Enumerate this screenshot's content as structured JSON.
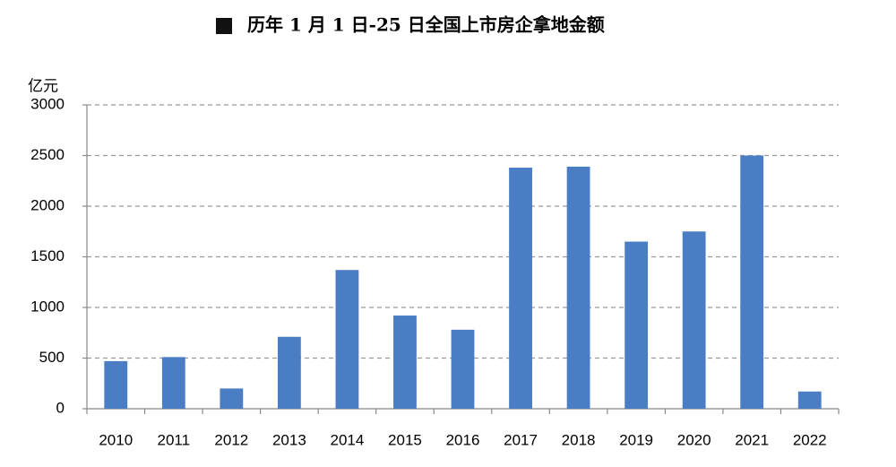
{
  "chart_data": {
    "type": "bar",
    "title": "历年 1 月 1 日-25 日全国上市房企拿地金额",
    "y_label": "亿元",
    "categories": [
      "2010",
      "2011",
      "2012",
      "2013",
      "2014",
      "2015",
      "2016",
      "2017",
      "2018",
      "2019",
      "2020",
      "2021",
      "2022"
    ],
    "values": [
      470,
      510,
      200,
      710,
      1370,
      920,
      780,
      2380,
      2390,
      1650,
      1750,
      2500,
      170
    ],
    "color": "#4a7dc4",
    "ylim": [
      0,
      3000
    ],
    "yticks": [
      0,
      500,
      1000,
      1500,
      2000,
      2500,
      3000
    ],
    "grid": true
  }
}
